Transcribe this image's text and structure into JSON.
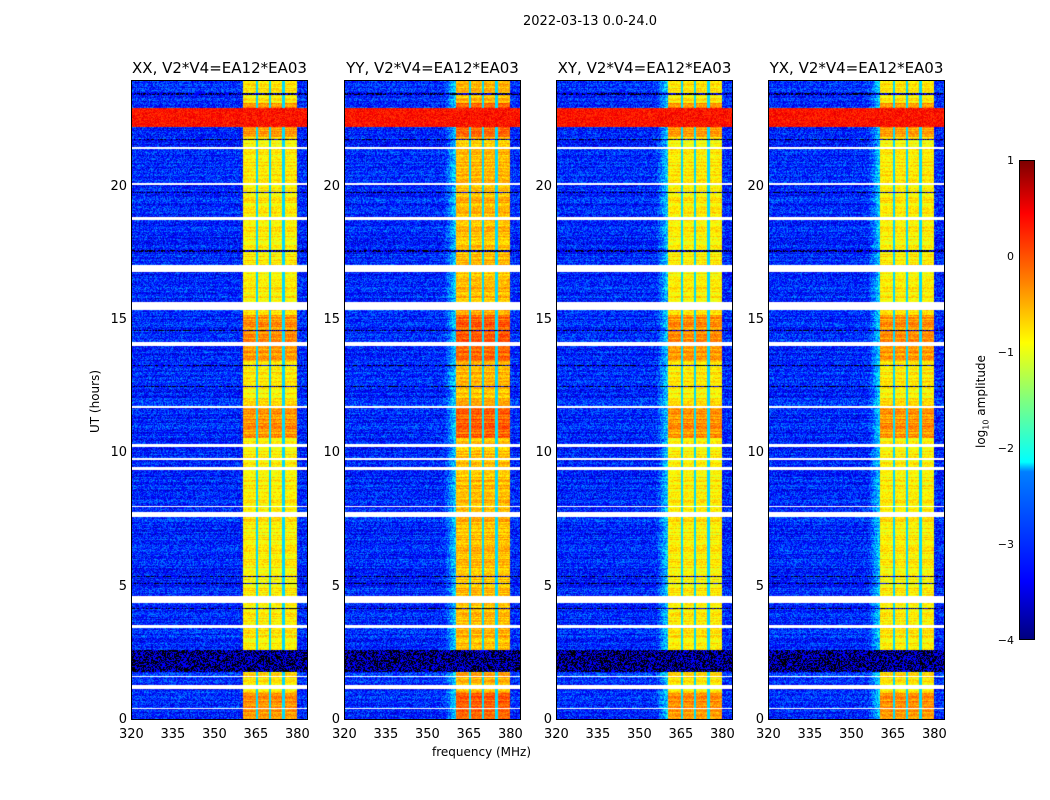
{
  "suptitle": "2022-03-13 0.0-24.0",
  "chart_data": {
    "type": "heatmap",
    "title": "2022-03-13 0.0-24.0",
    "xlabel": "frequency (MHz)",
    "ylabel": "UT (hours)",
    "xlim": [
      320,
      384
    ],
    "ylim": [
      0,
      24
    ],
    "xticks": [
      "320",
      "335",
      "350",
      "365",
      "380"
    ],
    "xtick_values": [
      320,
      335,
      350,
      365,
      380
    ],
    "yticks": [
      "0",
      "5",
      "10",
      "15",
      "20"
    ],
    "ytick_values": [
      0,
      5,
      10,
      15,
      20
    ],
    "panels": [
      {
        "title": "XX, V2*V4=EA12*EA03",
        "gain": 0
      },
      {
        "title": "YY, V2*V4=EA12*EA03",
        "gain": 0.25
      },
      {
        "title": "XY, V2*V4=EA12*EA03",
        "gain": 0
      },
      {
        "title": "YX, V2*V4=EA12*EA03",
        "gain": 0
      }
    ],
    "colorbar": {
      "label": "log10 amplitude",
      "range": [
        -4,
        1
      ],
      "ticks": [
        "1",
        "0",
        "−1",
        "−2",
        "−3",
        "−4"
      ],
      "tick_values": [
        1,
        0,
        -1,
        -2,
        -3,
        -4
      ],
      "colormap": "jet"
    },
    "background_level": -3.2,
    "band_mhz": [
      360.5,
      380
    ],
    "band_gaps_mhz": [
      365.5,
      370.3,
      375.2
    ],
    "band_level": -0.8,
    "strong_intervals_hours": [
      [
        0,
        1
      ],
      [
        10.6,
        11.7
      ],
      [
        13.5,
        15.2
      ],
      [
        21.9,
        23.2
      ]
    ],
    "rfi_intervals_hours": [
      [
        22.3,
        23.0
      ]
    ],
    "white_flags_hours": [
      [
        0.4,
        0.45
      ],
      [
        1.15,
        1.3
      ],
      [
        1.6,
        1.65
      ],
      [
        3.45,
        3.55
      ],
      [
        4.4,
        4.65
      ],
      [
        7.6,
        7.8
      ],
      [
        8.0,
        8.05
      ],
      [
        9.4,
        9.5
      ],
      [
        9.75,
        9.85
      ],
      [
        10.25,
        10.35
      ],
      [
        11.7,
        11.8
      ],
      [
        14.05,
        14.2
      ],
      [
        15.4,
        15.7
      ],
      [
        16.85,
        17.1
      ],
      [
        18.8,
        18.9
      ],
      [
        20.1,
        20.2
      ],
      [
        21.45,
        21.55
      ]
    ],
    "black_flags_hours": [
      [
        1.8,
        2.6
      ],
      [
        4.15,
        4.2
      ],
      [
        5.1,
        5.15
      ],
      [
        5.35,
        5.4
      ],
      [
        12.5,
        12.55
      ],
      [
        13.3,
        13.35
      ],
      [
        14.6,
        14.65
      ],
      [
        17.6,
        17.65
      ],
      [
        19.8,
        19.85
      ],
      [
        21.8,
        21.85
      ],
      [
        23.5,
        23.55
      ]
    ]
  }
}
